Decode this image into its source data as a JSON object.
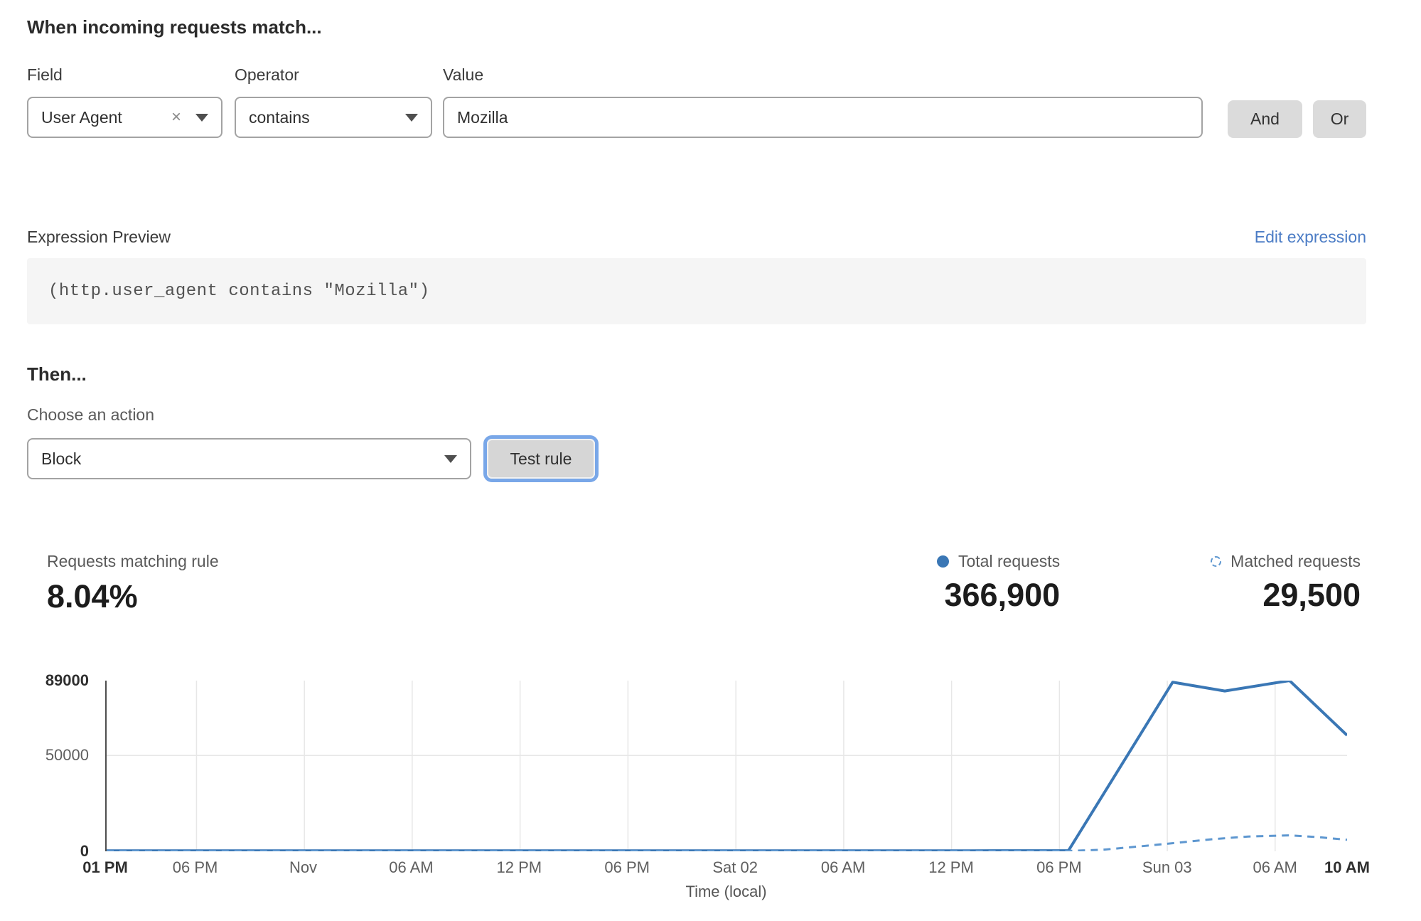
{
  "match_section": {
    "heading": "When incoming requests match...",
    "field": {
      "label": "Field",
      "value": "User Agent"
    },
    "operator": {
      "label": "Operator",
      "value": "contains"
    },
    "value": {
      "label": "Value",
      "value": "Mozilla"
    },
    "and_label": "And",
    "or_label": "Or",
    "clear_icon_glyph": "×"
  },
  "expression": {
    "label": "Expression Preview",
    "edit_link": "Edit expression",
    "code": "(http.user_agent contains \"Mozilla\")"
  },
  "then_section": {
    "heading": "Then...",
    "action_label": "Choose an action",
    "action_value": "Block",
    "test_button_label": "Test rule"
  },
  "stats": {
    "matching": {
      "label": "Requests matching rule",
      "value": "8.04%"
    },
    "total": {
      "label": "Total requests",
      "value": "366,900"
    },
    "matched": {
      "label": "Matched requests",
      "value": "29,500"
    }
  },
  "colors": {
    "link_blue": "#4b7cc5",
    "line_solid_blue": "#3a77b5",
    "line_dashed_blue": "#5e97d0",
    "focus_ring_blue": "#79a7e8",
    "button_gray": "#dbdbdb",
    "expr_box_gray": "#f5f5f5",
    "grid_gray": "#e7e7e7"
  },
  "chart_data": {
    "type": "line",
    "title": "",
    "xlabel": "Time (local)",
    "ylabel": "",
    "ylim": [
      0,
      89000
    ],
    "x_range": [
      0,
      69
    ],
    "grid": true,
    "legend_position": "top-right",
    "yticks": [
      {
        "value": 0,
        "label": "0",
        "bold": true
      },
      {
        "value": 50000,
        "label": "50000",
        "bold": false
      },
      {
        "value": 89000,
        "label": "89000",
        "bold": true
      }
    ],
    "xticks": [
      {
        "pos": 0,
        "label": "01 PM",
        "bold": true,
        "grid": false
      },
      {
        "pos": 5,
        "label": "06 PM",
        "bold": false
      },
      {
        "pos": 11,
        "label": "Nov",
        "bold": false
      },
      {
        "pos": 17,
        "label": "06 AM",
        "bold": false
      },
      {
        "pos": 23,
        "label": "12 PM",
        "bold": false
      },
      {
        "pos": 29,
        "label": "06 PM",
        "bold": false
      },
      {
        "pos": 35,
        "label": "Sat 02",
        "bold": false
      },
      {
        "pos": 41,
        "label": "06 AM",
        "bold": false
      },
      {
        "pos": 47,
        "label": "12 PM",
        "bold": false
      },
      {
        "pos": 53,
        "label": "06 PM",
        "bold": false
      },
      {
        "pos": 59,
        "label": "Sun 03",
        "bold": false
      },
      {
        "pos": 65,
        "label": "06 AM",
        "bold": false
      },
      {
        "pos": 69,
        "label": "10 AM",
        "bold": true,
        "grid": false
      }
    ],
    "series": [
      {
        "name": "Total requests",
        "style": "solid",
        "color": "#3a77b5",
        "points": [
          [
            0,
            300
          ],
          [
            6,
            300
          ],
          [
            12,
            300
          ],
          [
            18,
            300
          ],
          [
            24,
            300
          ],
          [
            30,
            300
          ],
          [
            36,
            300
          ],
          [
            42,
            300
          ],
          [
            48,
            300
          ],
          [
            53.5,
            350
          ],
          [
            59.3,
            88200
          ],
          [
            62.2,
            83600
          ],
          [
            65.8,
            89000
          ],
          [
            69,
            60500
          ]
        ]
      },
      {
        "name": "Matched requests",
        "style": "dashed",
        "color": "#5e97d0",
        "points": [
          [
            0,
            150
          ],
          [
            6,
            150
          ],
          [
            12,
            150
          ],
          [
            18,
            150
          ],
          [
            24,
            150
          ],
          [
            30,
            150
          ],
          [
            36,
            150
          ],
          [
            42,
            150
          ],
          [
            48,
            150
          ],
          [
            53.5,
            200
          ],
          [
            55.5,
            900
          ],
          [
            57.5,
            2600
          ],
          [
            59.5,
            4400
          ],
          [
            61.5,
            6300
          ],
          [
            63.5,
            7700
          ],
          [
            65.8,
            8300
          ],
          [
            67.5,
            7300
          ],
          [
            69,
            6000
          ]
        ]
      }
    ]
  }
}
